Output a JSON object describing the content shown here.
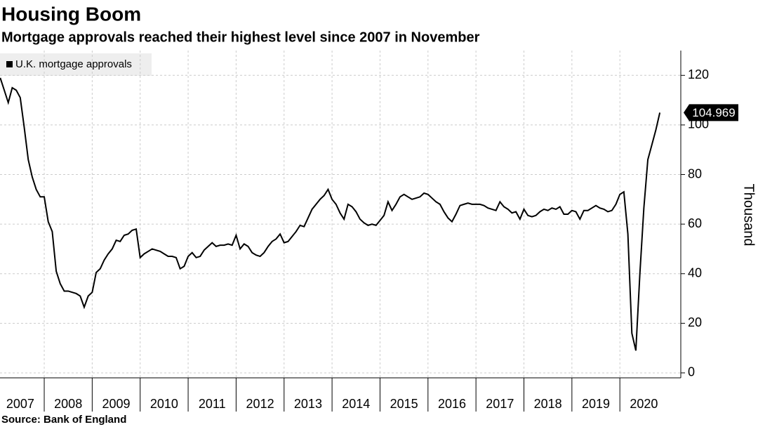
{
  "chart_data": {
    "type": "line",
    "title": "Housing Boom",
    "subtitle": "Mortgage approvals reached their highest level since 2007 in November",
    "y_label": "Thousand",
    "source": "Source: Bank of England",
    "x": [
      2007.083,
      2007.167,
      2007.25,
      2007.333,
      2007.417,
      2007.5,
      2007.583,
      2007.667,
      2007.75,
      2007.833,
      2007.917,
      2008,
      2008.083,
      2008.167,
      2008.25,
      2008.333,
      2008.417,
      2008.5,
      2008.583,
      2008.667,
      2008.75,
      2008.833,
      2008.917,
      2009,
      2009.083,
      2009.167,
      2009.25,
      2009.333,
      2009.417,
      2009.5,
      2009.583,
      2009.667,
      2009.75,
      2009.833,
      2009.917,
      2010,
      2010.083,
      2010.167,
      2010.25,
      2010.333,
      2010.417,
      2010.5,
      2010.583,
      2010.667,
      2010.75,
      2010.833,
      2010.917,
      2011,
      2011.083,
      2011.167,
      2011.25,
      2011.333,
      2011.417,
      2011.5,
      2011.583,
      2011.667,
      2011.75,
      2011.833,
      2011.917,
      2012,
      2012.083,
      2012.167,
      2012.25,
      2012.333,
      2012.417,
      2012.5,
      2012.583,
      2012.667,
      2012.75,
      2012.833,
      2012.917,
      2013,
      2013.083,
      2013.167,
      2013.25,
      2013.333,
      2013.417,
      2013.5,
      2013.583,
      2013.667,
      2013.75,
      2013.833,
      2013.917,
      2014,
      2014.083,
      2014.167,
      2014.25,
      2014.333,
      2014.417,
      2014.5,
      2014.583,
      2014.667,
      2014.75,
      2014.833,
      2014.917,
      2015,
      2015.083,
      2015.167,
      2015.25,
      2015.333,
      2015.417,
      2015.5,
      2015.583,
      2015.667,
      2015.75,
      2015.833,
      2015.917,
      2016,
      2016.083,
      2016.167,
      2016.25,
      2016.333,
      2016.417,
      2016.5,
      2016.583,
      2016.667,
      2016.75,
      2016.833,
      2016.917,
      2017,
      2017.083,
      2017.167,
      2017.25,
      2017.333,
      2017.417,
      2017.5,
      2017.583,
      2017.667,
      2017.75,
      2017.833,
      2017.917,
      2018,
      2018.083,
      2018.167,
      2018.25,
      2018.333,
      2018.417,
      2018.5,
      2018.583,
      2018.667,
      2018.75,
      2018.833,
      2018.917,
      2019,
      2019.083,
      2019.167,
      2019.25,
      2019.333,
      2019.417,
      2019.5,
      2019.583,
      2019.667,
      2019.75,
      2019.833,
      2019.917,
      2020,
      2020.083,
      2020.167,
      2020.25,
      2020.333,
      2020.417,
      2020.5,
      2020.583,
      2020.667,
      2020.75,
      2020.833
    ],
    "series": [
      {
        "name": "U.K. mortgage approvals",
        "color": "#000000",
        "values": [
          119,
          114,
          109,
          115,
          114,
          111,
          99,
          86,
          79,
          74,
          71,
          71,
          61,
          57,
          41,
          36,
          33,
          33,
          32.5,
          32,
          31,
          26.5,
          31,
          32.5,
          40.5,
          42,
          45.5,
          48,
          50,
          53.5,
          53,
          55.5,
          56,
          57.5,
          58,
          46.5,
          48,
          49,
          50,
          49.5,
          49,
          48,
          47,
          47,
          46.5,
          42,
          43,
          47,
          48.5,
          46.5,
          47,
          49.5,
          51,
          52.5,
          51,
          51.5,
          51.5,
          52,
          51.5,
          55.5,
          50,
          52,
          51,
          48.5,
          47.5,
          47,
          48.5,
          51,
          53,
          54,
          56,
          52.5,
          53,
          55,
          57,
          59.5,
          59,
          62.5,
          66,
          68,
          70,
          71.5,
          74,
          70,
          68,
          64.5,
          62,
          68,
          67,
          65,
          62,
          60.5,
          59.5,
          60,
          59.5,
          61.5,
          63.5,
          69,
          65.5,
          68,
          71,
          72,
          71,
          70,
          70.5,
          71,
          72.5,
          72,
          70.5,
          69,
          68,
          65,
          62.5,
          61,
          64,
          67.5,
          68,
          68.5,
          68,
          68,
          68,
          67.5,
          66.5,
          66,
          65.5,
          69,
          67,
          66,
          64.5,
          65,
          62,
          66,
          63.5,
          63,
          63.5,
          65,
          66,
          65.5,
          66.5,
          66,
          67,
          64,
          64,
          65.5,
          65,
          62,
          65.5,
          65.5,
          66.5,
          67.5,
          66.5,
          66,
          65,
          65.5,
          68,
          72,
          73,
          56,
          16,
          9,
          40,
          66.5,
          86,
          92,
          98,
          104.969
        ]
      }
    ],
    "xlim": [
      2007.078,
      2021.27
    ],
    "xticks": [
      2007,
      2008,
      2009,
      2010,
      2011,
      2012,
      2013,
      2014,
      2015,
      2016,
      2017,
      2018,
      2019,
      2020
    ],
    "ylim": [
      -2,
      130
    ],
    "yticks": [
      0,
      20,
      40,
      60,
      80,
      100,
      120
    ],
    "grid": true
  }
}
